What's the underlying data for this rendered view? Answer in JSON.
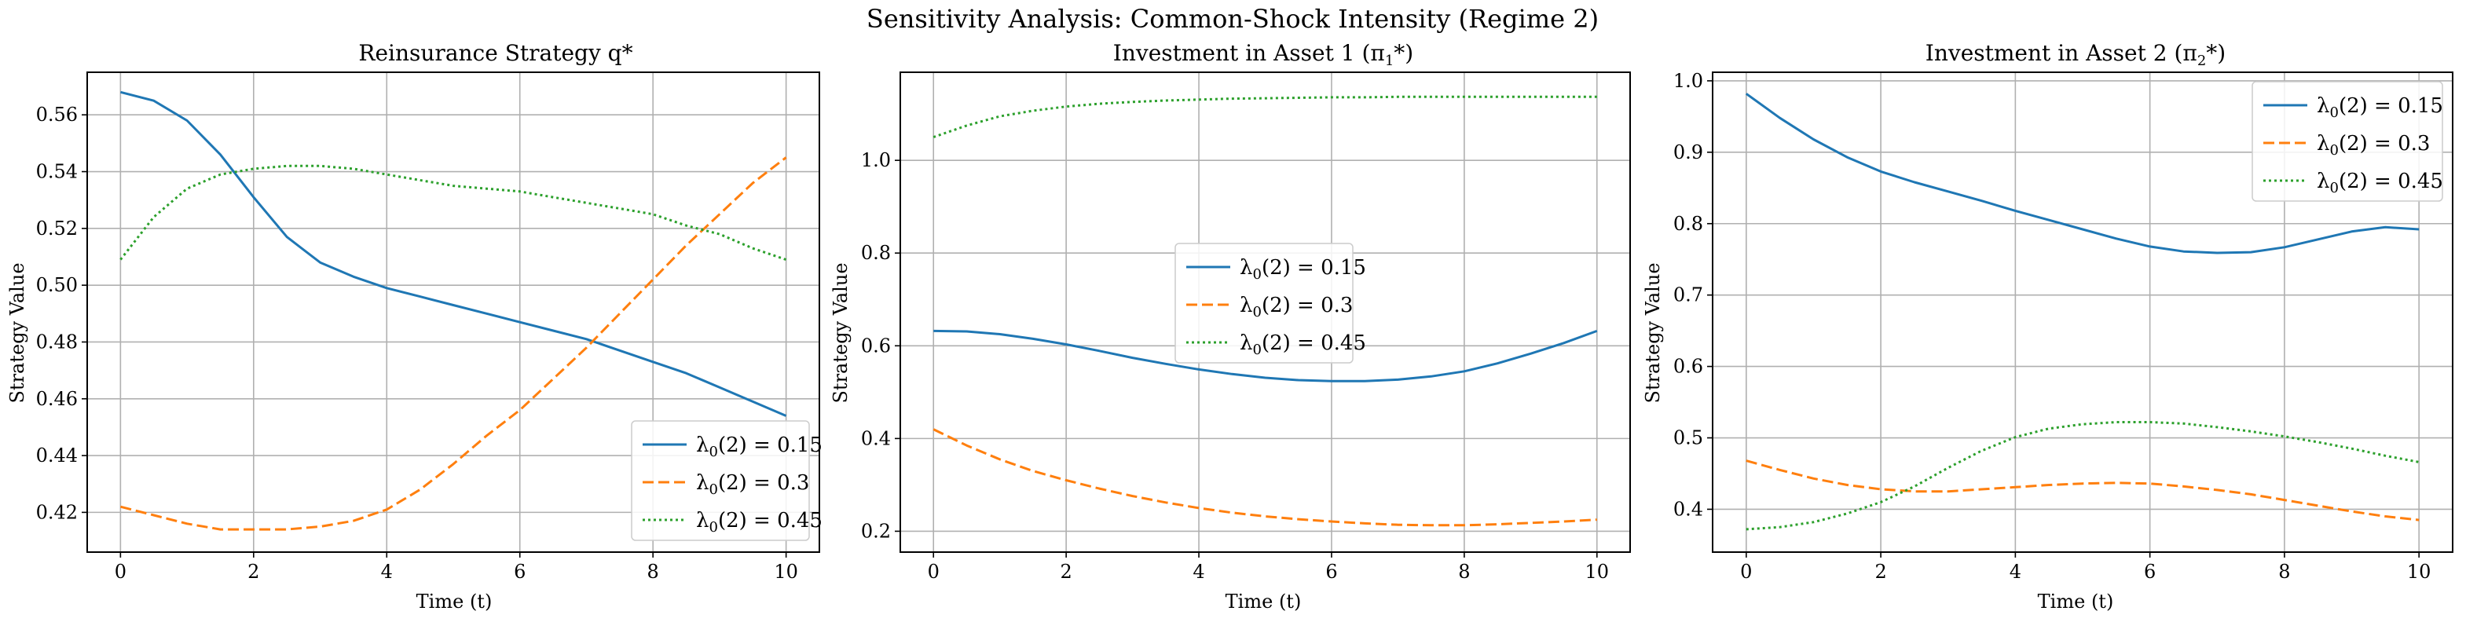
{
  "figure": {
    "title": "Sensitivity Analysis: Common-Shock Intensity (Regime 2)"
  },
  "colors": {
    "series1": "#1f77b4",
    "series2": "#ff7f0e",
    "series3": "#2ca02c",
    "grid": "#b0b0b0"
  },
  "chart_data": [
    {
      "type": "line",
      "title": "Reinsurance Strategy q*",
      "xlabel": "Time (t)",
      "ylabel": "Strategy Value",
      "xlim": [
        -0.5,
        10.5
      ],
      "ylim": [
        0.406,
        0.575
      ],
      "xticks": [
        0,
        2,
        4,
        6,
        8,
        10
      ],
      "yticks": [
        0.42,
        0.44,
        0.46,
        0.48,
        0.5,
        0.52,
        0.54,
        0.56
      ],
      "ytick_format": 2,
      "legend_position": "lower-right",
      "grid": true,
      "x": [
        0,
        0.5,
        1,
        1.5,
        2,
        2.5,
        3,
        3.5,
        4,
        4.5,
        5,
        5.5,
        6,
        6.5,
        7,
        7.5,
        8,
        8.5,
        9,
        9.5,
        10
      ],
      "series": [
        {
          "name": "λ₀(2) = 0.15",
          "legend_label": "λ0(2) = 0.15",
          "style": "solid",
          "values": [
            0.568,
            0.565,
            0.558,
            0.546,
            0.531,
            0.517,
            0.508,
            0.503,
            0.499,
            0.496,
            0.493,
            0.49,
            0.487,
            0.484,
            0.481,
            0.477,
            0.473,
            0.469,
            0.464,
            0.459,
            0.454
          ]
        },
        {
          "name": "λ₀(2) = 0.3",
          "legend_label": "λ0(2) = 0.3",
          "style": "dashed",
          "values": [
            0.422,
            0.419,
            0.416,
            0.414,
            0.414,
            0.414,
            0.415,
            0.417,
            0.421,
            0.428,
            0.437,
            0.447,
            0.456,
            0.467,
            0.478,
            0.49,
            0.502,
            0.514,
            0.525,
            0.536,
            0.545
          ]
        },
        {
          "name": "λ₀(2) = 0.45",
          "legend_label": "λ0(2) = 0.45",
          "style": "dotted",
          "values": [
            0.509,
            0.524,
            0.534,
            0.539,
            0.541,
            0.542,
            0.542,
            0.541,
            0.539,
            0.537,
            0.535,
            0.534,
            0.533,
            0.531,
            0.529,
            0.527,
            0.525,
            0.521,
            0.518,
            0.513,
            0.509
          ]
        }
      ]
    },
    {
      "type": "line",
      "title": "Investment in Asset 1 (π",
      "title_sub": "1",
      "title_end": "*)",
      "xlabel": "Time (t)",
      "ylabel": "Strategy Value",
      "xlim": [
        -0.5,
        10.5
      ],
      "ylim": [
        0.155,
        1.19
      ],
      "xticks": [
        0,
        2,
        4,
        6,
        8,
        10
      ],
      "yticks": [
        0.2,
        0.4,
        0.6,
        0.8,
        1.0
      ],
      "ytick_format": 1,
      "legend_position": "center-left",
      "grid": true,
      "x": [
        0,
        0.5,
        1,
        1.5,
        2,
        2.5,
        3,
        3.5,
        4,
        4.5,
        5,
        5.5,
        6,
        6.5,
        7,
        7.5,
        8,
        8.5,
        9,
        9.5,
        10
      ],
      "series": [
        {
          "name": "λ₀(2) = 0.15",
          "legend_label": "λ0(2) = 0.15",
          "style": "solid",
          "values": [
            0.632,
            0.631,
            0.625,
            0.615,
            0.603,
            0.589,
            0.574,
            0.561,
            0.549,
            0.539,
            0.531,
            0.526,
            0.524,
            0.524,
            0.527,
            0.534,
            0.545,
            0.562,
            0.583,
            0.606,
            0.632
          ]
        },
        {
          "name": "λ₀(2) = 0.3",
          "legend_label": "λ0(2) = 0.3",
          "style": "dashed",
          "values": [
            0.42,
            0.385,
            0.355,
            0.33,
            0.31,
            0.292,
            0.276,
            0.262,
            0.25,
            0.24,
            0.232,
            0.226,
            0.221,
            0.217,
            0.214,
            0.213,
            0.213,
            0.215,
            0.218,
            0.221,
            0.225
          ]
        },
        {
          "name": "λ₀(2) = 0.45",
          "legend_label": "λ0(2) = 0.45",
          "style": "dotted",
          "values": [
            1.05,
            1.075,
            1.095,
            1.107,
            1.116,
            1.122,
            1.126,
            1.129,
            1.131,
            1.133,
            1.134,
            1.135,
            1.136,
            1.136,
            1.137,
            1.137,
            1.137,
            1.137,
            1.137,
            1.137,
            1.137
          ]
        }
      ]
    },
    {
      "type": "line",
      "title": "Investment in Asset 2 (π",
      "title_sub": "2",
      "title_end": "*)",
      "xlabel": "Time (t)",
      "ylabel": "Strategy Value",
      "xlim": [
        -0.5,
        10.5
      ],
      "ylim": [
        0.34,
        1.012
      ],
      "xticks": [
        0,
        2,
        4,
        6,
        8,
        10
      ],
      "yticks": [
        0.4,
        0.5,
        0.6,
        0.7,
        0.8,
        0.9,
        1.0
      ],
      "ytick_format": 1,
      "legend_position": "upper-right",
      "grid": true,
      "x": [
        0,
        0.5,
        1,
        1.5,
        2,
        2.5,
        3,
        3.5,
        4,
        4.5,
        5,
        5.5,
        6,
        6.5,
        7,
        7.5,
        8,
        8.5,
        9,
        9.5,
        10
      ],
      "series": [
        {
          "name": "λ₀(2) = 0.15",
          "legend_label": "λ0(2) = 0.15",
          "style": "solid",
          "values": [
            0.982,
            0.948,
            0.918,
            0.893,
            0.873,
            0.858,
            0.845,
            0.832,
            0.818,
            0.805,
            0.792,
            0.779,
            0.768,
            0.761,
            0.759,
            0.76,
            0.767,
            0.778,
            0.789,
            0.795,
            0.792
          ]
        },
        {
          "name": "λ₀(2) = 0.3",
          "legend_label": "λ0(2) = 0.3",
          "style": "dashed",
          "values": [
            0.468,
            0.455,
            0.443,
            0.434,
            0.428,
            0.425,
            0.425,
            0.428,
            0.431,
            0.434,
            0.436,
            0.437,
            0.436,
            0.432,
            0.427,
            0.421,
            0.413,
            0.405,
            0.397,
            0.39,
            0.385
          ]
        },
        {
          "name": "λ₀(2) = 0.45",
          "legend_label": "λ0(2) = 0.45",
          "style": "dotted",
          "values": [
            0.372,
            0.375,
            0.382,
            0.394,
            0.41,
            0.432,
            0.458,
            0.482,
            0.501,
            0.513,
            0.519,
            0.522,
            0.522,
            0.52,
            0.515,
            0.509,
            0.502,
            0.494,
            0.485,
            0.475,
            0.466
          ]
        }
      ]
    }
  ]
}
